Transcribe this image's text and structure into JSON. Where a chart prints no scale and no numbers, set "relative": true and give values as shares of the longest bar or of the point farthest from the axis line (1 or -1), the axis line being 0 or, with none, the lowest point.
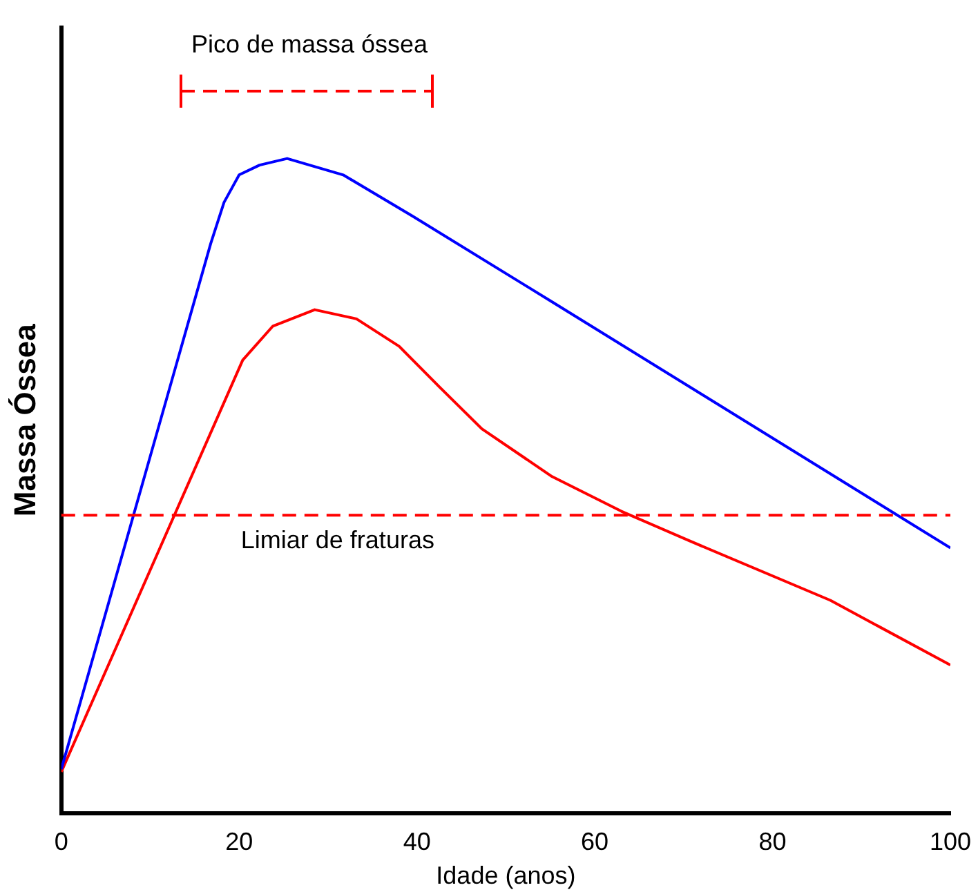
{
  "chart_data": {
    "type": "line",
    "xlabel": "Idade (anos)",
    "ylabel": "Massa Óssea",
    "relative": true,
    "xlim": [
      0,
      100
    ],
    "xticks": [
      0,
      20,
      40,
      60,
      80,
      100
    ],
    "grid": false,
    "legend": false,
    "marker": "none",
    "line_style": "solid",
    "series": [
      {
        "color": "#0000ff",
        "x": [
          0,
          16.8,
          18.3,
          20,
          22.3,
          25.4,
          31.7,
          39.5,
          55.2,
          100
        ],
        "values": [
          0.067,
          0.87,
          0.933,
          0.975,
          0.99,
          1.0,
          0.975,
          0.912,
          0.781,
          0.405
        ]
      },
      {
        "color": "#ff0000",
        "x": [
          0,
          20.4,
          23.8,
          28.5,
          33.2,
          38,
          42.6,
          47.3,
          55.2,
          63,
          70.8,
          86.5,
          100
        ],
        "values": [
          0.063,
          0.692,
          0.744,
          0.769,
          0.755,
          0.713,
          0.65,
          0.587,
          0.514,
          0.461,
          0.415,
          0.325,
          0.226
        ]
      }
    ],
    "ref_lines": [
      {
        "axis": "y",
        "value": 0.455,
        "label": "Limiar de fraturas",
        "color": "#ff0000",
        "line_style": "dashed"
      }
    ],
    "annotations": [
      "Pico de massa óssea"
    ]
  }
}
